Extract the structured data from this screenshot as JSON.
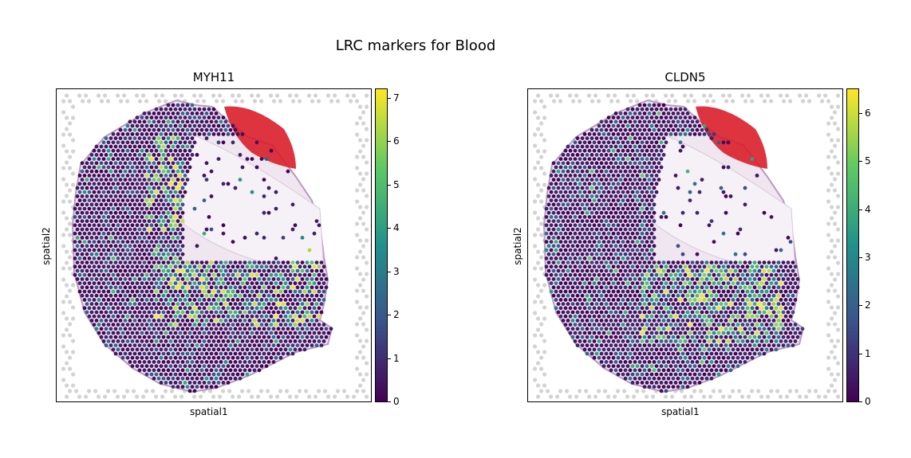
{
  "figure": {
    "title": "LRC markers for Blood"
  },
  "chart_data": [
    {
      "type": "scatter",
      "title": "MYH11",
      "xlabel": "spatial1",
      "ylabel": "spatial2",
      "colorbar": {
        "colormap": "viridis",
        "range": [
          0,
          7.2
        ],
        "ticks": [
          "0",
          "1",
          "2",
          "3",
          "4",
          "5",
          "6",
          "7"
        ]
      }
    },
    {
      "type": "scatter",
      "title": "CLDN5",
      "xlabel": "spatial1",
      "ylabel": "spatial2",
      "colorbar": {
        "colormap": "viridis",
        "range": [
          0,
          6.5
        ],
        "ticks": [
          "0",
          "1",
          "2",
          "3",
          "4",
          "5",
          "6"
        ]
      }
    }
  ],
  "colors": {
    "viridis": [
      "#440154",
      "#3b528b",
      "#21918c",
      "#5ec962",
      "#fde725"
    ],
    "tissue_red": "#d91e2a"
  }
}
